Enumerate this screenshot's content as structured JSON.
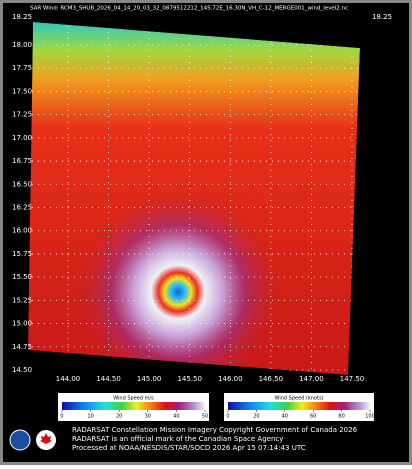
{
  "title": "SAR Wind: RCM3_SHUB_2026_04_14_20_03_32_0879512212_145.72E_16.30N_VH_C-12_MERGE001_wind_level2.nc",
  "top_lat_labels": [
    "18.25",
    "18.25"
  ],
  "lat_ticks": [
    {
      "value": 18,
      "label": "18.00"
    },
    {
      "value": 17.75,
      "label": "17.75"
    },
    {
      "value": 17.5,
      "label": "17.50"
    },
    {
      "value": 17.25,
      "label": "17.25"
    },
    {
      "value": 17,
      "label": "17.00"
    },
    {
      "value": 16.75,
      "label": "16.75"
    },
    {
      "value": 16.5,
      "label": "16.50"
    },
    {
      "value": 16.25,
      "label": "16.25"
    },
    {
      "value": 16,
      "label": "16.00"
    },
    {
      "value": 15.75,
      "label": "15.75"
    },
    {
      "value": 15.5,
      "label": "15.50"
    },
    {
      "value": 15.25,
      "label": "15.25"
    },
    {
      "value": 15,
      "label": "15.00"
    },
    {
      "value": 14.75,
      "label": "14.75"
    },
    {
      "value": 14.5,
      "label": "14.50"
    }
  ],
  "lon_ticks": [
    {
      "value": 144,
      "label": "144.00"
    },
    {
      "value": 144.5,
      "label": "144.50"
    },
    {
      "value": 145,
      "label": "145.00"
    },
    {
      "value": 145.5,
      "label": "145.50"
    },
    {
      "value": 146,
      "label": "146.00"
    },
    {
      "value": 146.5,
      "label": "146.50"
    },
    {
      "value": 147,
      "label": "147.00"
    },
    {
      "value": 147.5,
      "label": "147.50"
    }
  ],
  "colorbars": [
    {
      "label": "Wind Speed m/s",
      "lim": [
        0,
        50
      ],
      "ticks": [
        0,
        10,
        20,
        30,
        40,
        50
      ]
    },
    {
      "label": "Wind Speed (knots)",
      "lim": [
        0,
        100
      ],
      "ticks": [
        0,
        20,
        40,
        60,
        80,
        100
      ]
    }
  ],
  "footer": [
    "RADARSAT Constellation Mission Imagery Copyright Government of Canada 2026",
    "RADARSAT is an official mark of the Canadian Space Agency",
    "Processed at NOAA/NESDIS/STAR/SOCD 2026 Apr 15 07:14:43 UTC"
  ]
}
